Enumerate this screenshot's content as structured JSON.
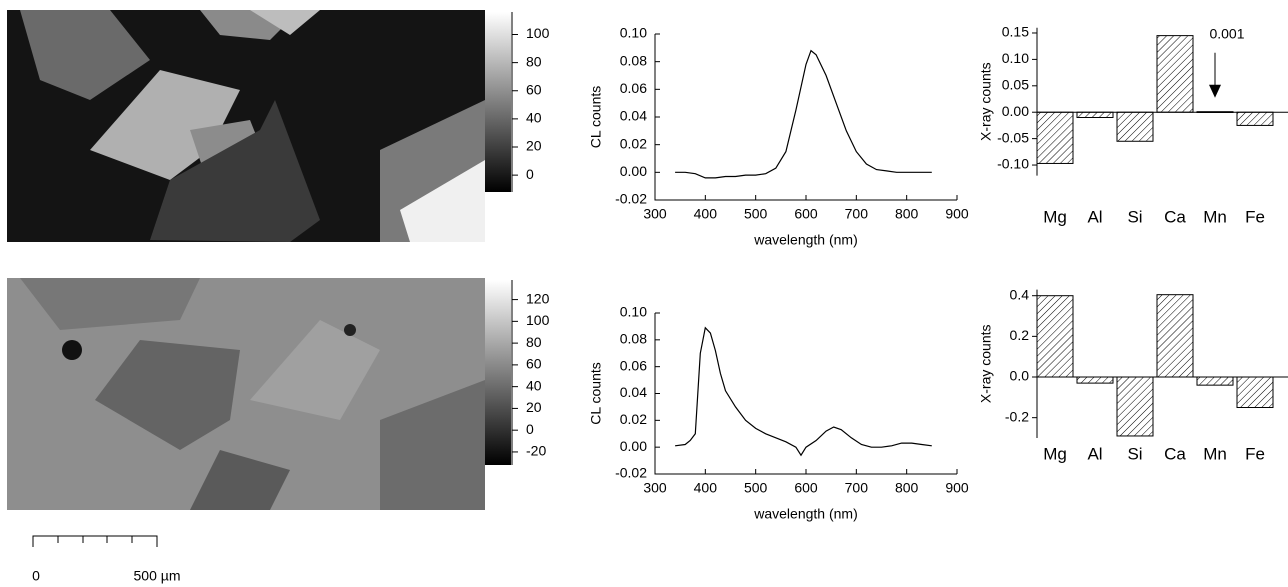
{
  "chart_data": [
    {
      "type": "colorbar",
      "ylim": [
        -12,
        116
      ],
      "yticks": [
        0,
        20,
        40,
        60,
        80,
        100
      ]
    },
    {
      "type": "line",
      "xlabel": "wavelength (nm)",
      "ylabel": "CL counts",
      "xlim": [
        300,
        900
      ],
      "ylim": [
        -0.02,
        0.1
      ],
      "xticks": [
        300,
        400,
        500,
        600,
        700,
        800,
        900
      ],
      "yticks": [
        {
          "value": -0.02,
          "label": "-0.02"
        },
        {
          "value": 0,
          "label": "0.00"
        },
        {
          "value": 0.02,
          "label": "0.02"
        },
        {
          "value": 0.04,
          "label": "0.04"
        },
        {
          "value": 0.06,
          "label": "0.06"
        },
        {
          "value": 0.08,
          "label": "0.08"
        },
        {
          "value": 0.1,
          "label": "0.10"
        }
      ],
      "x": [
        340,
        360,
        380,
        400,
        420,
        440,
        460,
        480,
        500,
        520,
        540,
        560,
        580,
        600,
        610,
        620,
        640,
        660,
        680,
        700,
        720,
        740,
        760,
        780,
        800,
        820,
        850
      ],
      "series": [
        {
          "color": "#000000",
          "values": [
            0.0,
            0.0,
            -0.001,
            -0.004,
            -0.004,
            -0.003,
            -0.003,
            -0.002,
            -0.002,
            -0.001,
            0.003,
            0.015,
            0.045,
            0.078,
            0.088,
            0.085,
            0.07,
            0.05,
            0.03,
            0.015,
            0.006,
            0.002,
            0.001,
            0.0,
            0.0,
            0.0,
            0.0
          ]
        }
      ]
    },
    {
      "type": "bar",
      "ylabel": "X-ray counts",
      "ylim": [
        -0.12,
        0.16
      ],
      "color": "#000000",
      "yticks": [
        {
          "value": -0.1,
          "label": "-0.10"
        },
        {
          "value": -0.05,
          "label": "-0.05"
        },
        {
          "value": 0,
          "label": "0.00"
        },
        {
          "value": 0.05,
          "label": "0.05"
        },
        {
          "value": 0.1,
          "label": "0.10"
        },
        {
          "value": 0.15,
          "label": "0.15"
        }
      ],
      "categories": [
        "Mg",
        "Al",
        "Si",
        "Ca",
        "Mn",
        "Fe"
      ],
      "values": [
        -0.097,
        -0.01,
        -0.055,
        0.145,
        0.001,
        -0.025
      ],
      "annotation": "0.001"
    },
    {
      "type": "colorbar",
      "ylim": [
        -32,
        138
      ],
      "yticks": [
        -20,
        0,
        20,
        40,
        60,
        80,
        100,
        120
      ]
    },
    {
      "type": "line",
      "xlabel": "wavelength (nm)",
      "ylabel": "CL counts",
      "xlim": [
        300,
        900
      ],
      "ylim": [
        -0.02,
        0.1
      ],
      "xticks": [
        300,
        400,
        500,
        600,
        700,
        800,
        900
      ],
      "yticks": [
        {
          "value": -0.02,
          "label": "-0.02"
        },
        {
          "value": 0,
          "label": "0.00"
        },
        {
          "value": 0.02,
          "label": "0.02"
        },
        {
          "value": 0.04,
          "label": "0.04"
        },
        {
          "value": 0.06,
          "label": "0.06"
        },
        {
          "value": 0.08,
          "label": "0.08"
        },
        {
          "value": 0.1,
          "label": "0.10"
        }
      ],
      "x": [
        340,
        360,
        370,
        380,
        385,
        390,
        400,
        410,
        420,
        430,
        440,
        460,
        480,
        500,
        520,
        540,
        560,
        580,
        590,
        600,
        620,
        640,
        655,
        670,
        690,
        710,
        730,
        750,
        770,
        790,
        810,
        830,
        850
      ],
      "series": [
        {
          "color": "#000000",
          "values": [
            0.001,
            0.002,
            0.005,
            0.01,
            0.04,
            0.07,
            0.089,
            0.085,
            0.072,
            0.055,
            0.042,
            0.03,
            0.02,
            0.014,
            0.01,
            0.007,
            0.004,
            0.0,
            -0.006,
            0.0,
            0.005,
            0.012,
            0.015,
            0.013,
            0.007,
            0.002,
            0.0,
            0.0,
            0.001,
            0.003,
            0.003,
            0.002,
            0.001
          ]
        }
      ]
    },
    {
      "type": "bar",
      "ylabel": "X-ray counts",
      "ylim": [
        -0.3,
        0.43
      ],
      "color": "#000000",
      "yticks": [
        {
          "value": -0.2,
          "label": "-0.2"
        },
        {
          "value": 0,
          "label": "0.0"
        },
        {
          "value": 0.2,
          "label": "0.2"
        },
        {
          "value": 0.4,
          "label": "0.4"
        }
      ],
      "categories": [
        "Mg",
        "Al",
        "Si",
        "Ca",
        "Mn",
        "Fe"
      ],
      "values": [
        0.4,
        -0.03,
        -0.29,
        0.405,
        -0.04,
        -0.15
      ]
    }
  ],
  "scale_bar": {
    "start_label": "0",
    "end_label": "500 µm"
  }
}
